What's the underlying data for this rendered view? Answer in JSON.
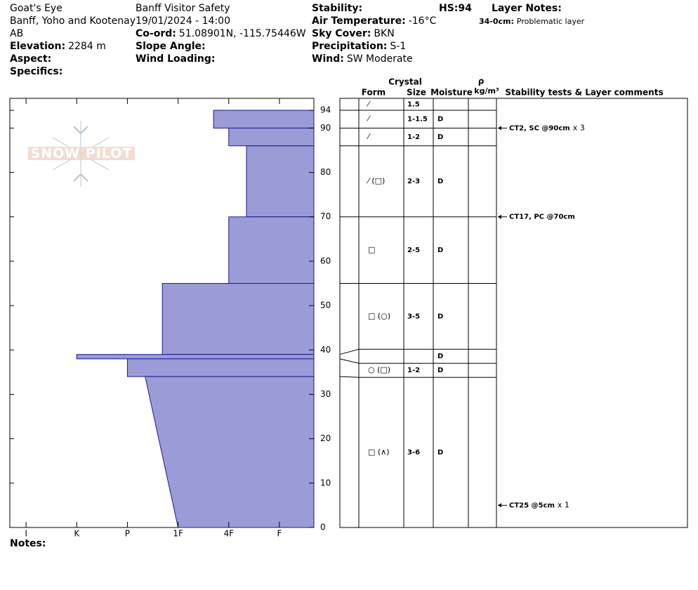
{
  "header": {
    "col1": [
      {
        "text": "Goat's Eye"
      },
      {
        "text": "Banff, Yoho and Kootenay"
      },
      {
        "text": "AB"
      },
      {
        "label": "Elevation:",
        "value": "2284 m"
      },
      {
        "label": "Aspect:"
      },
      {
        "label": "Specifics:"
      }
    ],
    "col2": [
      {
        "text": "Banff  Visitor Safety"
      },
      {
        "text": "19/01/2024 - 14:00"
      },
      {
        "label": "Co-ord:",
        "value": "51.08901N, -115.75446W"
      },
      {
        "label": "Slope Angle:"
      },
      {
        "label": "Wind Loading:"
      }
    ],
    "col3": [
      {
        "label": "Stability:"
      },
      {
        "label": "Air Temperature:",
        "value": "-16°C"
      },
      {
        "label": "Sky Cover:",
        "value": "BKN"
      },
      {
        "label": "Precipitation:",
        "value": "S-1"
      },
      {
        "label": "Wind:",
        "value": "SW Moderate"
      }
    ],
    "hs": {
      "label": "HS:",
      "value": "94"
    },
    "layer_notes_title": "Layer Notes:",
    "layer_notes": [
      {
        "label": "34-0cm:",
        "value": "Problematic layer"
      }
    ],
    "watermark": "SNOW PILOT",
    "notes_label": "Notes:"
  },
  "chart_data": {
    "type": "hardness-profile",
    "ylim": [
      0,
      96.7
    ],
    "yticks": [
      0,
      10,
      20,
      30,
      40,
      50,
      60,
      70,
      80,
      90,
      94
    ],
    "xlim": [
      -0.32,
      5.68
    ],
    "xticks": [
      {
        "value": 0,
        "label": "I"
      },
      {
        "value": 1,
        "label": "K"
      },
      {
        "value": 2,
        "label": "P"
      },
      {
        "value": 3,
        "label": "1F"
      },
      {
        "value": 4,
        "label": "4F"
      },
      {
        "value": 5,
        "label": "F"
      }
    ],
    "color": "#9b9bd8",
    "columns": {
      "crystal": "Crystal",
      "form": "Form",
      "size": "Size",
      "moisture": "Moisture",
      "rho": "ρ",
      "density": "kg/m³",
      "comments": "Stability tests & Layer comments"
    },
    "surface_row": {
      "form": "⁄",
      "size": "1.5"
    },
    "layers": [
      {
        "top": 94,
        "bottom": 90,
        "hardness_top": 3.7,
        "hardness_bottom": 3.7,
        "form": "⁄",
        "size": "1-1.5",
        "moisture": "D"
      },
      {
        "top": 90,
        "bottom": 86,
        "hardness_top": 4,
        "hardness_bottom": 4,
        "form": "⁄",
        "size": "1-2",
        "moisture": "D"
      },
      {
        "top": 86,
        "bottom": 70,
        "hardness_top": 4.35,
        "hardness_bottom": 4.35,
        "form": "⁄ (□)",
        "size": "2-3",
        "moisture": "D"
      },
      {
        "top": 70,
        "bottom": 55,
        "hardness_top": 4,
        "hardness_bottom": 4,
        "form": "□",
        "size": "2-5",
        "moisture": "D"
      },
      {
        "top": 55,
        "bottom": 39,
        "hardness_top": 2.69,
        "hardness_bottom": 2.69,
        "form": "□ (○)",
        "size": "3-5",
        "moisture": "D"
      },
      {
        "top": 39,
        "bottom": 38,
        "hardness_top": 1,
        "hardness_bottom": 1,
        "moisture": "D"
      },
      {
        "top": 38,
        "bottom": 34,
        "hardness_top": 2,
        "hardness_bottom": 2,
        "form": "○ (□)",
        "size": "1-2",
        "moisture": "D"
      },
      {
        "top": 34,
        "bottom": 0,
        "hardness_top": 2.35,
        "hardness_bottom": 3,
        "form": "□ (∧)",
        "size": "3-6",
        "moisture": "D"
      }
    ],
    "tests": [
      {
        "height": 90,
        "label": "CT2, SC @90cm",
        "count": "x 3"
      },
      {
        "height": 70,
        "label": "CT17, PC @70cm"
      },
      {
        "height": 5,
        "label": "CT25 @5cm",
        "count": "x 1"
      }
    ]
  }
}
